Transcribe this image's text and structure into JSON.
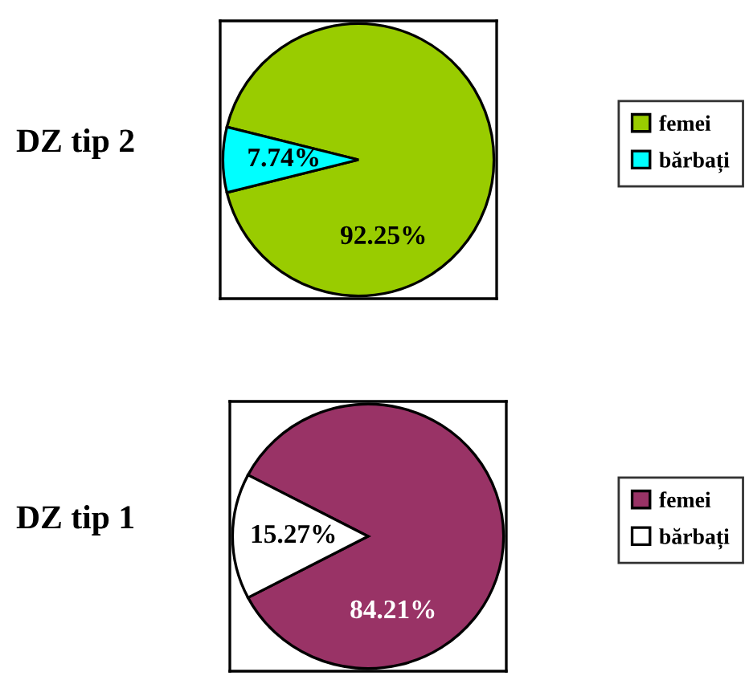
{
  "chart_data": [
    {
      "type": "pie",
      "title": "DZ tip 2",
      "categories": [
        "femei",
        "bărbați"
      ],
      "values": [
        92.25,
        7.74
      ],
      "colors": [
        "#99cc00",
        "#00ffff"
      ],
      "value_labels": [
        "92.25%",
        "7.74%"
      ],
      "legend": "right"
    },
    {
      "type": "pie",
      "title": "DZ tip 1",
      "categories": [
        "femei",
        "bărbați"
      ],
      "values": [
        84.21,
        15.27
      ],
      "colors": [
        "#993366",
        "#ffffff"
      ],
      "value_labels": [
        "84.21%",
        "15.27%"
      ],
      "legend": "right"
    }
  ]
}
